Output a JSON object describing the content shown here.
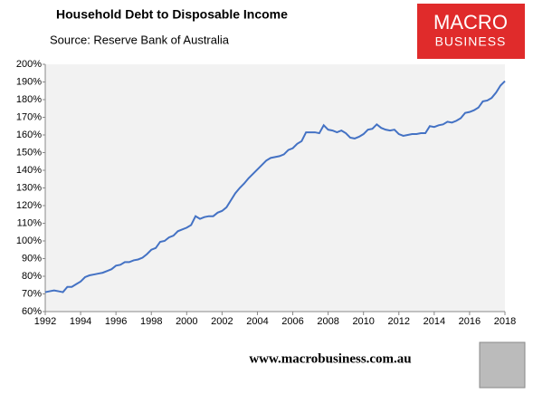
{
  "chart_data": {
    "type": "line",
    "title": "Household Debt to Disposable Income",
    "subtitle": "Source: Reserve Bank of Australia",
    "x": [
      1992,
      1992.25,
      1992.5,
      1992.75,
      1993,
      1993.25,
      1993.5,
      1993.75,
      1994,
      1994.25,
      1994.5,
      1994.75,
      1995,
      1995.25,
      1995.5,
      1995.75,
      1996,
      1996.25,
      1996.5,
      1996.75,
      1997,
      1997.25,
      1997.5,
      1997.75,
      1998,
      1998.25,
      1998.5,
      1998.75,
      1999,
      1999.25,
      1999.5,
      1999.75,
      2000,
      2000.25,
      2000.5,
      2000.75,
      2001,
      2001.25,
      2001.5,
      2001.75,
      2002,
      2002.25,
      2002.5,
      2002.75,
      2003,
      2003.25,
      2003.5,
      2003.75,
      2004,
      2004.25,
      2004.5,
      2004.75,
      2005,
      2005.25,
      2005.5,
      2005.75,
      2006,
      2006.25,
      2006.5,
      2006.75,
      2007,
      2007.25,
      2007.5,
      2007.75,
      2008,
      2008.25,
      2008.5,
      2008.75,
      2009,
      2009.25,
      2009.5,
      2009.75,
      2010,
      2010.25,
      2010.5,
      2010.75,
      2011,
      2011.25,
      2011.5,
      2011.75,
      2012,
      2012.25,
      2012.5,
      2012.75,
      2013,
      2013.25,
      2013.5,
      2013.75,
      2014,
      2014.25,
      2014.5,
      2014.75,
      2015,
      2015.25,
      2015.5,
      2015.75,
      2016,
      2016.25,
      2016.5,
      2016.75,
      2017,
      2017.25,
      2017.5,
      2017.75,
      2018
    ],
    "series": [
      {
        "color": "#4472c4",
        "values": [
          71,
          71.5,
          72,
          71.5,
          71,
          74,
          74,
          75.5,
          77,
          79.5,
          80.5,
          81,
          81.5,
          82,
          83,
          84,
          86,
          86.5,
          88,
          88,
          89,
          89.5,
          90.5,
          92.5,
          95,
          96,
          99.5,
          100,
          102,
          103,
          105.5,
          106.5,
          107.5,
          109,
          114,
          112.5,
          113.5,
          114,
          114,
          116,
          117,
          119,
          123,
          127,
          130,
          132.5,
          135.5,
          138,
          140.5,
          143,
          145.5,
          147,
          147.5,
          148,
          149,
          151.5,
          152.5,
          155,
          156.5,
          161.5,
          161.5,
          161.5,
          161,
          165.5,
          163,
          162.5,
          161.5,
          162.5,
          161,
          158.5,
          158,
          159,
          160.5,
          163,
          163.5,
          166,
          164,
          163,
          162.5,
          163,
          160.5,
          159.5,
          160,
          160.5,
          160.5,
          161,
          161,
          165,
          164.5,
          165.5,
          166,
          167.5,
          167,
          168,
          169.5,
          172.5,
          173,
          174,
          175.5,
          179,
          179.5,
          181,
          184,
          188,
          190.5
        ]
      }
    ],
    "xlim": [
      1992,
      2018
    ],
    "xticks": [
      1992,
      1994,
      1996,
      1998,
      2000,
      2002,
      2004,
      2006,
      2008,
      2010,
      2012,
      2014,
      2016,
      2018
    ],
    "ylim": [
      60,
      200
    ],
    "yticks": [
      {
        "value": 60,
        "label": "60%"
      },
      {
        "value": 70,
        "label": "70%"
      },
      {
        "value": 80,
        "label": "80%"
      },
      {
        "value": 90,
        "label": "90%"
      },
      {
        "value": 100,
        "label": "100%"
      },
      {
        "value": 110,
        "label": "110%"
      },
      {
        "value": 120,
        "label": "120%"
      },
      {
        "value": 130,
        "label": "130%"
      },
      {
        "value": 140,
        "label": "140%"
      },
      {
        "value": 150,
        "label": "150%"
      },
      {
        "value": 160,
        "label": "160%"
      },
      {
        "value": 170,
        "label": "170%"
      },
      {
        "value": 180,
        "label": "180%"
      },
      {
        "value": 190,
        "label": "190%"
      },
      {
        "value": 200,
        "label": "200%"
      }
    ],
    "grid": false
  },
  "logo": {
    "line1": "MACRO",
    "line2": "BUSINESS"
  },
  "footer": "www.macrobusiness.com.au"
}
